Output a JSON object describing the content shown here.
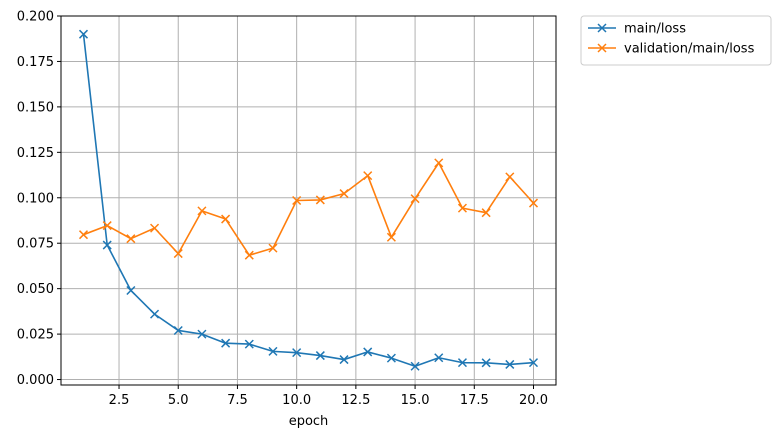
{
  "chart_data": {
    "type": "line",
    "title": "",
    "xlabel": "epoch",
    "ylabel": "",
    "xlim": [
      0.05,
      20.95
    ],
    "ylim": [
      -0.003,
      0.2
    ],
    "xticks": [
      2.5,
      5.0,
      7.5,
      10.0,
      12.5,
      15.0,
      17.5,
      20.0
    ],
    "xtick_labels": [
      "2.5",
      "5.0",
      "7.5",
      "10.0",
      "12.5",
      "15.0",
      "17.5",
      "20.0"
    ],
    "yticks": [
      0.0,
      0.025,
      0.05,
      0.075,
      0.1,
      0.125,
      0.15,
      0.175,
      0.2
    ],
    "ytick_labels": [
      "0.000",
      "0.025",
      "0.050",
      "0.075",
      "0.100",
      "0.125",
      "0.150",
      "0.175",
      "0.200"
    ],
    "grid": true,
    "legend_position": "outside-top-right",
    "x": [
      1,
      2,
      3,
      4,
      5,
      6,
      7,
      8,
      9,
      10,
      11,
      12,
      13,
      14,
      15,
      16,
      17,
      18,
      19,
      20
    ],
    "series": [
      {
        "name": "main/loss",
        "color": "#1f77b4",
        "marker": "x",
        "values": [
          0.19,
          0.074,
          0.049,
          0.036,
          0.027,
          0.025,
          0.02,
          0.0195,
          0.0155,
          0.0148,
          0.0132,
          0.011,
          0.0152,
          0.0118,
          0.0073,
          0.012,
          0.0093,
          0.0092,
          0.0083,
          0.0093
        ]
      },
      {
        "name": "validation/main/loss",
        "color": "#ff7f0e",
        "marker": "x",
        "values": [
          0.0797,
          0.0847,
          0.0775,
          0.0833,
          0.0693,
          0.0928,
          0.0883,
          0.0684,
          0.0723,
          0.0985,
          0.0988,
          0.1023,
          0.1122,
          0.0783,
          0.0995,
          0.1192,
          0.0943,
          0.0918,
          0.1115,
          0.0971
        ]
      }
    ]
  }
}
